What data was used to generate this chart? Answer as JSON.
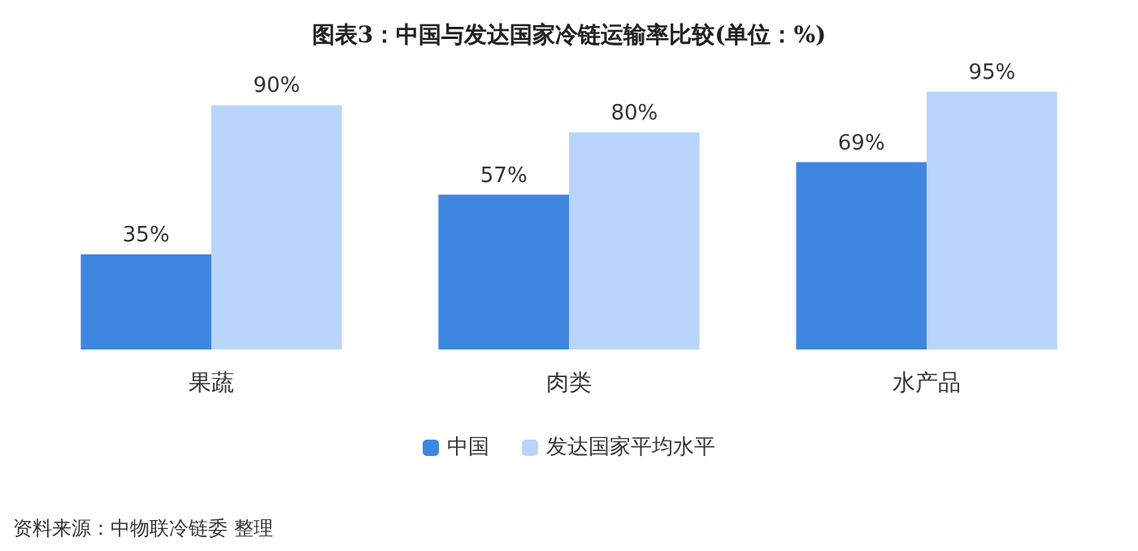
{
  "chart_data": {
    "type": "bar",
    "title": "图表3：中国与发达国家冷链运输率比较(单位：%)",
    "categories": [
      "果蔬",
      "肉类",
      "水产品"
    ],
    "series": [
      {
        "name": "中国",
        "color": "#3f86e0",
        "values": [
          35,
          57,
          69
        ],
        "value_labels": [
          "35%",
          "57%",
          "69%"
        ]
      },
      {
        "name": "发达国家平均水平",
        "color": "#b9d5fb",
        "values": [
          90,
          80,
          95
        ],
        "value_labels": [
          "90%",
          "80%",
          "95%"
        ]
      }
    ],
    "legend": "bottom",
    "annotations": [
      "资料来源：中物联冷链委 整理"
    ]
  }
}
